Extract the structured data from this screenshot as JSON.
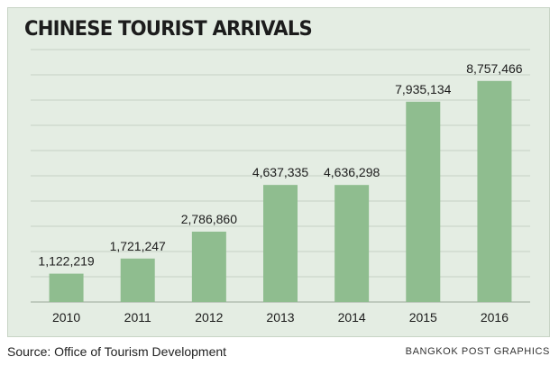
{
  "title": "CHINESE TOURIST ARRIVALS",
  "source": "Source: Office of Tourism Development",
  "credit": "BANGKOK POST GRAPHICS",
  "colors": {
    "bar": "#8fbd8f",
    "panel": "#e4ede3",
    "grid": "#c6d1c5",
    "text": "#1c1c1c"
  },
  "chart_data": {
    "type": "bar",
    "title": "CHINESE TOURIST ARRIVALS",
    "categories": [
      "2010",
      "2011",
      "2012",
      "2013",
      "2014",
      "2015",
      "2016"
    ],
    "values": [
      1122219,
      1721247,
      2786860,
      4637335,
      4636298,
      7935134,
      8757466
    ],
    "data_labels": [
      "1,122,219",
      "1,721,247",
      "2,786,860",
      "4,637,335",
      "4,636,298",
      "7,935,134",
      "8,757,466"
    ],
    "xlabel": "",
    "ylabel": "",
    "ylim": [
      0,
      10000000
    ],
    "grid": true,
    "legend": "none"
  }
}
